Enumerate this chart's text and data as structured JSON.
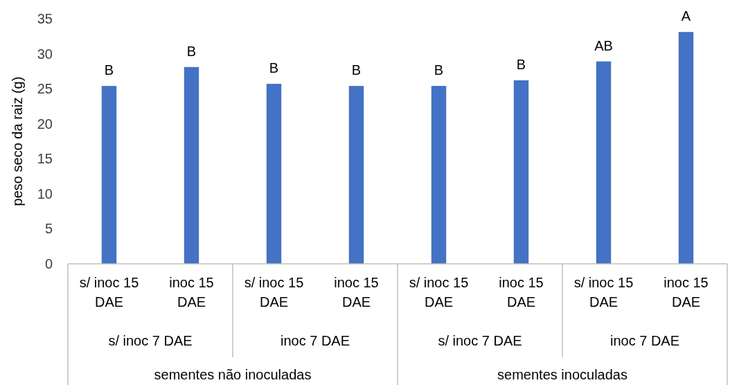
{
  "chart_data": {
    "type": "bar",
    "ylabel": "peso seco da raiz (g)",
    "categories": [
      "s/ inoc 15 DAE",
      "inoc 15 DAE",
      "s/ inoc 15 DAE",
      "inoc 15 DAE",
      "s/ inoc 15 DAE",
      "inoc 15 DAE",
      "s/ inoc 15 DAE",
      "inoc 15 DAE"
    ],
    "values": [
      25.4,
      28.1,
      25.7,
      25.4,
      25.4,
      26.2,
      28.9,
      33.1
    ],
    "value_labels": [
      "B",
      "B",
      "B",
      "B",
      "B",
      "B",
      "AB",
      "A"
    ],
    "color": "#4472c4",
    "ylim": [
      0,
      35
    ],
    "yticks": [
      0,
      5,
      10,
      15,
      20,
      25,
      30,
      35
    ],
    "annotations": [
      "s/ inoc 7 DAE",
      "inoc 7 DAE",
      "s/ inoc 7 DAE",
      "inoc 7 DAE",
      "sementes não inoculadas",
      "sementes inoculadas"
    ]
  }
}
